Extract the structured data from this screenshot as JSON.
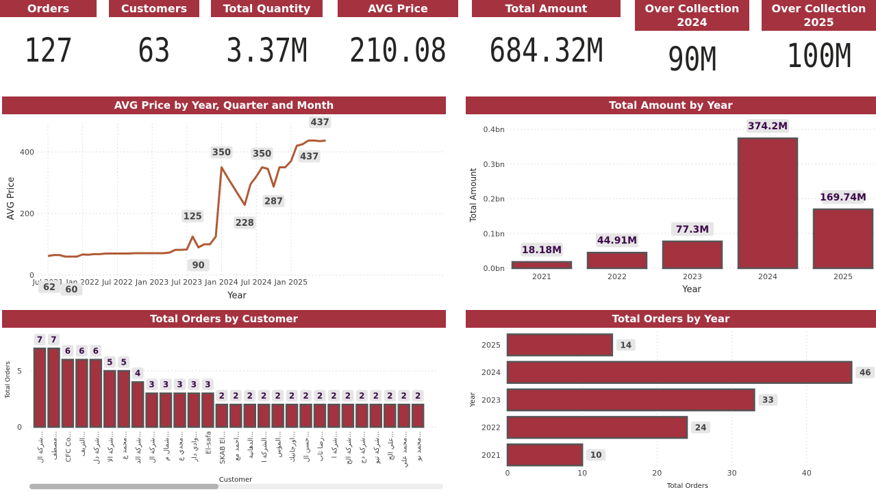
{
  "colors": {
    "accent": "#a4323f",
    "line": "#b05a34",
    "label_bg": "#e6e6e6",
    "bar_label": "#3b0a4a"
  },
  "kpis": [
    {
      "title": "Orders",
      "value": "127"
    },
    {
      "title": "Customers",
      "value": "63"
    },
    {
      "title": "Total Quantity",
      "value": "3.37M"
    },
    {
      "title": "AVG Price",
      "value": "210.08"
    },
    {
      "title": "Total Amount",
      "value": "684.32M"
    },
    {
      "title": "Over Collection 2024",
      "value": "90M"
    },
    {
      "title": "Over Collection 2025",
      "value": "100M"
    }
  ],
  "panels": {
    "avg_price": "AVG Price by Year, Quarter and Month",
    "total_amount": "Total Amount by Year",
    "orders_customer": "Total Orders by Customer",
    "orders_year": "Total Orders by Year"
  },
  "chart_data": [
    {
      "type": "line",
      "title": "AVG Price by Year, Quarter and Month",
      "xlabel": "Year",
      "ylabel": "AVG Price",
      "x_ticks": [
        "Jul 2021",
        "Jan 2022",
        "Jul 2022",
        "Jan 2023",
        "Jul 2023",
        "Jan 2024",
        "Jul 2024",
        "Jan 2025"
      ],
      "y_ticks": [
        "0",
        "200",
        "400"
      ],
      "ylim": [
        0,
        470
      ],
      "x": [
        "2021-07",
        "2021-08",
        "2021-09",
        "2021-10",
        "2021-11",
        "2021-12",
        "2022-01",
        "2022-02",
        "2022-03",
        "2022-04",
        "2022-05",
        "2022-06",
        "2022-07",
        "2022-08",
        "2022-09",
        "2022-10",
        "2022-11",
        "2022-12",
        "2023-01",
        "2023-02",
        "2023-03",
        "2023-04",
        "2023-05",
        "2023-06",
        "2023-07",
        "2023-08",
        "2023-09",
        "2023-10",
        "2023-11",
        "2023-12",
        "2024-01",
        "2024-02",
        "2024-03",
        "2024-04",
        "2024-05",
        "2024-06",
        "2024-07",
        "2024-08",
        "2024-09",
        "2024-10",
        "2024-11",
        "2024-12",
        "2025-01",
        "2025-02",
        "2025-03",
        "2025-04",
        "2025-05",
        "2025-06",
        "2025-07"
      ],
      "values": [
        62,
        65,
        65,
        60,
        60,
        60,
        67,
        66,
        68,
        68,
        70,
        70,
        70,
        70,
        70,
        71,
        71,
        71,
        71,
        71,
        71,
        73,
        82,
        82,
        83,
        125,
        90,
        100,
        100,
        125,
        350,
        318,
        288,
        258,
        228,
        295,
        320,
        350,
        345,
        287,
        350,
        350,
        370,
        420,
        425,
        437,
        437,
        435,
        437
      ],
      "data_labels": [
        {
          "x": "2021-07",
          "text": "62"
        },
        {
          "x": "2021-10",
          "text": "60"
        },
        {
          "x": "2023-08",
          "text": "125"
        },
        {
          "x": "2023-09",
          "text": "90"
        },
        {
          "x": "2024-01",
          "text": "350"
        },
        {
          "x": "2024-05",
          "text": "228"
        },
        {
          "x": "2024-08",
          "text": "350"
        },
        {
          "x": "2024-10",
          "text": "287"
        },
        {
          "x": "2025-04",
          "text": "437"
        },
        {
          "x": "2025-05",
          "text": "437"
        }
      ]
    },
    {
      "type": "bar",
      "title": "Total Amount by Year",
      "xlabel": "Year",
      "ylabel": "Total Amount",
      "categories": [
        "2021",
        "2022",
        "2023",
        "2024",
        "2025"
      ],
      "values": [
        18.18,
        44.91,
        77.3,
        374.2,
        169.74
      ],
      "value_labels": [
        "18.18M",
        "44.91M",
        "77.3M",
        "374.2M",
        "169.74M"
      ],
      "y_ticks": [
        "0.0bn",
        "0.1bn",
        "0.2bn",
        "0.3bn",
        "0.4bn"
      ],
      "ylim": [
        0,
        400
      ]
    },
    {
      "type": "bar",
      "title": "Total Orders by Customer",
      "xlabel": "Customer",
      "ylabel": "Total Orders",
      "categories": [
        "شركة ال...",
        "مصطف...",
        "CFC Co...",
        "التريف...",
        "شركة دل...",
        "شركة الا...",
        "محمد ع...",
        "شركة الد...",
        "شركة ال...",
        "شمال م...",
        "مجدي ع...",
        "وادي دار...",
        "El-safa",
        "SKAB El...",
        "احمد مع...",
        "الدهانية...",
        "الشركة ا...",
        "المؤس...",
        "اورجانيك...",
        "حسن ال...",
        "رضا ثاب...",
        "شركة ا...",
        "شركة الج...",
        "شركة دج...",
        "شركة تيو...",
        "علي الج...",
        "محمد علي...",
        "محمد نو..."
      ],
      "values": [
        7,
        7,
        6,
        6,
        6,
        5,
        5,
        4,
        3,
        3,
        3,
        3,
        3,
        2,
        2,
        2,
        2,
        2,
        2,
        2,
        2,
        2,
        2,
        2,
        2,
        2,
        2,
        2
      ],
      "y_ticks": [
        "0",
        "5"
      ],
      "ylim": [
        0,
        7.6
      ]
    },
    {
      "type": "bar",
      "orientation": "horizontal",
      "title": "Total Orders by Year",
      "xlabel": "Total Orders",
      "ylabel": "Year",
      "categories": [
        "2025",
        "2024",
        "2023",
        "2022",
        "2021"
      ],
      "values": [
        14,
        46,
        33,
        24,
        10
      ],
      "x_ticks": [
        "0",
        "10",
        "20",
        "30",
        "40"
      ],
      "xlim": [
        0,
        48
      ]
    }
  ]
}
